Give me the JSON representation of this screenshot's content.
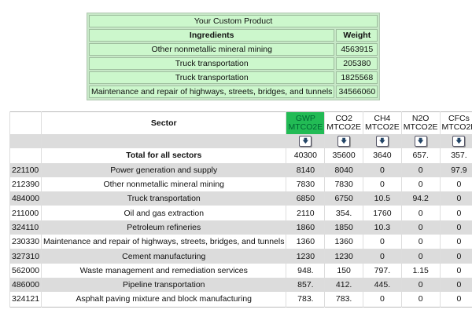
{
  "product": {
    "title": "Your Custom Product",
    "col_ingredients": "Ingredients",
    "col_weight": "Weight",
    "rows": [
      {
        "name": "Other nonmetallic mineral mining",
        "weight": "4563915"
      },
      {
        "name": "Truck transportation",
        "weight": "205380"
      },
      {
        "name": "Truck transportation",
        "weight": "1825568"
      },
      {
        "name": "Maintenance and repair of highways, streets, bridges, and tunnels",
        "weight": "34566060"
      }
    ]
  },
  "sectors": {
    "col_sector": "Sector",
    "unit": "MTCO2E",
    "columns": [
      "GWP",
      "CO2",
      "CH4",
      "N2O",
      "CFCs"
    ],
    "highlight_color": "#22bb55",
    "sort_icon": "down-arrow-icon",
    "total": {
      "label": "Total for all sectors",
      "values": [
        "40300",
        "35600",
        "3640",
        "657.",
        "357."
      ]
    },
    "rows": [
      {
        "code": "221100",
        "name": "Power generation and supply",
        "values": [
          "8140",
          "8040",
          "0",
          "0",
          "97.9"
        ]
      },
      {
        "code": "212390",
        "name": "Other nonmetallic mineral mining",
        "values": [
          "7830",
          "7830",
          "0",
          "0",
          "0"
        ]
      },
      {
        "code": "484000",
        "name": "Truck transportation",
        "values": [
          "6850",
          "6750",
          "10.5",
          "94.2",
          "0"
        ]
      },
      {
        "code": "211000",
        "name": "Oil and gas extraction",
        "values": [
          "2110",
          "354.",
          "1760",
          "0",
          "0"
        ]
      },
      {
        "code": "324110",
        "name": "Petroleum refineries",
        "values": [
          "1860",
          "1850",
          "10.3",
          "0",
          "0"
        ]
      },
      {
        "code": "230330",
        "name": "Maintenance and repair of highways, streets, bridges, and tunnels",
        "values": [
          "1360",
          "1360",
          "0",
          "0",
          "0"
        ]
      },
      {
        "code": "327310",
        "name": "Cement manufacturing",
        "values": [
          "1230",
          "1230",
          "0",
          "0",
          "0"
        ]
      },
      {
        "code": "562000",
        "name": "Waste management and remediation services",
        "values": [
          "948.",
          "150",
          "797.",
          "1.15",
          "0"
        ]
      },
      {
        "code": "486000",
        "name": "Pipeline transportation",
        "values": [
          "857.",
          "412.",
          "445.",
          "0",
          "0"
        ]
      },
      {
        "code": "324121",
        "name": "Asphalt paving mixture and block manufacturing",
        "values": [
          "783.",
          "783.",
          "0",
          "0",
          "0"
        ]
      }
    ]
  }
}
